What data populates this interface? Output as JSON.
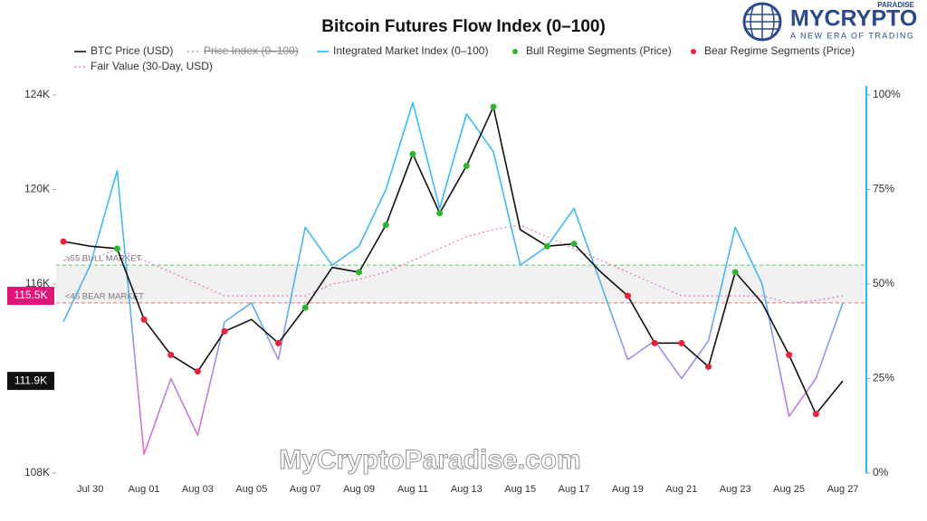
{
  "chart_data": {
    "type": "line",
    "title": "Bitcoin Futures Flow Index (0–100)",
    "x": [
      null,
      "Jul 30",
      null,
      "Aug 01",
      null,
      "Aug 03",
      null,
      "Aug 05",
      null,
      "Aug 07",
      null,
      "Aug 09",
      null,
      "Aug 11",
      null,
      "Aug 13",
      null,
      "Aug 15",
      null,
      "Aug 17",
      null,
      "Aug 19",
      null,
      "Aug 21",
      null,
      "Aug 23",
      null,
      "Aug 25",
      null,
      "Aug 27"
    ],
    "ylim": [
      108000,
      124000
    ],
    "yticks": [
      {
        "value": 108000,
        "label": "108K"
      },
      {
        "value": 116000,
        "label": "116K"
      },
      {
        "value": 120000,
        "label": "120K"
      },
      {
        "value": 124000,
        "label": "124K"
      }
    ],
    "y2lim": [
      0,
      100
    ],
    "y2ticks": [
      {
        "value": 0,
        "label": "0%"
      },
      {
        "value": 25,
        "label": "25%"
      },
      {
        "value": 50,
        "label": "50%"
      },
      {
        "value": 75,
        "label": "75%"
      },
      {
        "value": 100,
        "label": "100%"
      }
    ],
    "price_labels": [
      {
        "value": 115500,
        "label": "115.5K",
        "color": "#e0157a"
      },
      {
        "value": 111900,
        "label": "111.9K",
        "color": "#111111"
      }
    ],
    "thresholds": [
      {
        "value": 55,
        "label": ">55 BULL MARKET",
        "color": "#5cc85c"
      },
      {
        "value": 45,
        "label": "<45 BEAR MARKET",
        "color": "#f07070"
      }
    ],
    "series": [
      {
        "name": "BTC Price (USD)",
        "color": "#111111",
        "style": "line",
        "values": [
          117800,
          117600,
          117500,
          114500,
          113000,
          112300,
          114000,
          114500,
          113500,
          115000,
          116700,
          116500,
          118500,
          121500,
          119000,
          121000,
          123500,
          118300,
          117600,
          117700,
          116500,
          115500,
          113500,
          113500,
          112500,
          116500,
          115200,
          113000,
          110500,
          111900
        ]
      },
      {
        "name": "Price Index (0–100)",
        "color": "#aaaaaa",
        "style": "dotted",
        "hidden": true
      },
      {
        "name": "Integrated Market Index (0–100)",
        "color": "#29b6f6",
        "style": "line",
        "axis": "y2",
        "values": [
          40,
          55,
          80,
          5,
          25,
          10,
          40,
          45,
          30,
          65,
          55,
          60,
          75,
          98,
          70,
          95,
          85,
          55,
          60,
          70,
          50,
          30,
          35,
          25,
          35,
          65,
          50,
          15,
          25,
          45
        ]
      },
      {
        "name": "Bull Regime Segments (Price)",
        "color": "#2fb52f",
        "style": "markers",
        "values": [
          null,
          null,
          117500,
          null,
          null,
          null,
          null,
          null,
          null,
          115000,
          null,
          116500,
          118500,
          121500,
          119000,
          121000,
          123500,
          null,
          117600,
          117700,
          null,
          null,
          null,
          null,
          null,
          116500,
          null,
          null,
          null,
          null
        ]
      },
      {
        "name": "Bear Regime Segments (Price)",
        "color": "#e8233a",
        "style": "markers",
        "values": [
          117800,
          null,
          null,
          114500,
          113000,
          112300,
          114000,
          null,
          113500,
          null,
          null,
          null,
          null,
          null,
          null,
          null,
          null,
          null,
          null,
          null,
          null,
          115500,
          113500,
          113500,
          112500,
          null,
          null,
          113000,
          110500,
          null
        ]
      },
      {
        "name": "Fair Value (30-Day, USD)",
        "color": "#e879c6",
        "style": "dotted",
        "values": [
          117000,
          117000,
          117500,
          117000,
          116500,
          116000,
          115500,
          115500,
          115500,
          115500,
          116000,
          116200,
          116500,
          117000,
          117500,
          118000,
          118300,
          118500,
          118000,
          117500,
          117000,
          116500,
          116000,
          115500,
          115500,
          115500,
          115500,
          115200,
          115300,
          115500
        ]
      }
    ]
  },
  "logo": {
    "name": "MYCRYPTO",
    "suffix": "PARADISE",
    "tagline": "A NEW ERA OF TRADING"
  },
  "watermark": "MyCryptoParadise.com"
}
